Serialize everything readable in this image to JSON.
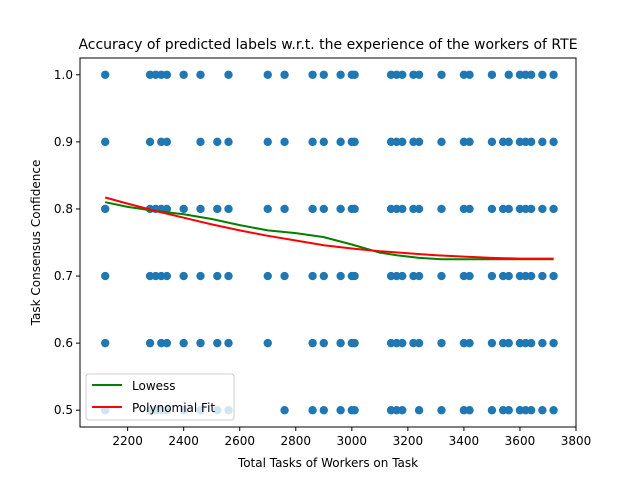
{
  "chart_data": {
    "type": "scatter",
    "title": "Accuracy of predicted labels w.r.t. the experience of the workers of RTE",
    "xlabel": "Total Tasks of Workers on Task",
    "ylabel": "Task Consensus Confidence",
    "xlim": [
      2030,
      3800
    ],
    "ylim": [
      0.475,
      1.025
    ],
    "xticks": [
      "2200",
      "2400",
      "2600",
      "2800",
      "3000",
      "3200",
      "3400",
      "3600",
      "3800"
    ],
    "yticks": [
      "0.5",
      "0.6",
      "0.7",
      "0.8",
      "0.9",
      "1.0"
    ],
    "legend_position": "lower-left",
    "colors": {
      "scatter": "#1f77b4",
      "lowess": "#008000",
      "poly": "#ff0000"
    },
    "scatter_x": [
      2120,
      2280,
      2300,
      2320,
      2340,
      2400,
      2460,
      2520,
      2560,
      2700,
      2760,
      2860,
      2900,
      2960,
      3000,
      3010,
      3140,
      3160,
      3180,
      3220,
      3240,
      3320,
      3400,
      3420,
      3500,
      3540,
      3560,
      3600,
      3620,
      3640,
      3680,
      3720
    ],
    "y_levels": [
      0.5,
      0.6,
      0.7,
      0.8,
      0.9,
      1.0
    ],
    "scatter": [
      {
        "y": 1.0,
        "x": [
          2120,
          2280,
          2300,
          2320,
          2340,
          2400,
          2460,
          2560,
          2700,
          2760,
          2860,
          2900,
          2960,
          3000,
          3010,
          3140,
          3160,
          3180,
          3220,
          3240,
          3320,
          3400,
          3420,
          3500,
          3560,
          3600,
          3620,
          3640,
          3680,
          3720
        ]
      },
      {
        "y": 0.9,
        "x": [
          2120,
          2280,
          2320,
          2340,
          2460,
          2520,
          2560,
          2700,
          2760,
          2860,
          2900,
          2960,
          3000,
          3010,
          3140,
          3160,
          3180,
          3220,
          3240,
          3320,
          3400,
          3420,
          3500,
          3540,
          3560,
          3600,
          3620,
          3640,
          3680,
          3720
        ]
      },
      {
        "y": 0.8,
        "x": [
          2120,
          2280,
          2300,
          2320,
          2340,
          2400,
          2460,
          2520,
          2560,
          2700,
          2760,
          2860,
          2900,
          2960,
          3000,
          3010,
          3140,
          3160,
          3180,
          3220,
          3240,
          3320,
          3400,
          3420,
          3500,
          3540,
          3560,
          3600,
          3620,
          3640,
          3680,
          3720
        ]
      },
      {
        "y": 0.7,
        "x": [
          2120,
          2280,
          2300,
          2320,
          2340,
          2400,
          2460,
          2520,
          2560,
          2700,
          2760,
          2860,
          2900,
          2960,
          3000,
          3010,
          3140,
          3160,
          3180,
          3220,
          3240,
          3320,
          3400,
          3420,
          3500,
          3540,
          3560,
          3600,
          3620,
          3640,
          3680,
          3720
        ]
      },
      {
        "y": 0.6,
        "x": [
          2120,
          2280,
          2320,
          2340,
          2400,
          2460,
          2520,
          2560,
          2700,
          2860,
          2900,
          2960,
          3000,
          3010,
          3140,
          3160,
          3180,
          3220,
          3240,
          3320,
          3400,
          3420,
          3500,
          3540,
          3560,
          3600,
          3620,
          3640,
          3680,
          3720
        ]
      },
      {
        "y": 0.5,
        "x": [
          2120,
          2280,
          2300,
          2320,
          2340,
          2400,
          2460,
          2520,
          2560,
          2760,
          2860,
          2900,
          2960,
          3000,
          3010,
          3140,
          3160,
          3180,
          3240,
          3320,
          3400,
          3420,
          3500,
          3540,
          3560,
          3600,
          3620,
          3640,
          3680,
          3720
        ]
      }
    ],
    "series": [
      {
        "name": "Lowess",
        "x": [
          2120,
          2200,
          2300,
          2400,
          2500,
          2600,
          2700,
          2800,
          2900,
          3000,
          3100,
          3160,
          3240,
          3320,
          3400,
          3500,
          3600,
          3720
        ],
        "y": [
          0.81,
          0.803,
          0.797,
          0.792,
          0.785,
          0.776,
          0.768,
          0.764,
          0.758,
          0.747,
          0.735,
          0.731,
          0.727,
          0.725,
          0.725,
          0.725,
          0.725,
          0.725
        ]
      },
      {
        "name": "Polynomial Fit",
        "x": [
          2120,
          2200,
          2300,
          2400,
          2500,
          2600,
          2700,
          2800,
          2900,
          3000,
          3100,
          3200,
          3300,
          3400,
          3500,
          3600,
          3720
        ],
        "y": [
          0.817,
          0.808,
          0.797,
          0.787,
          0.777,
          0.768,
          0.76,
          0.753,
          0.746,
          0.741,
          0.737,
          0.734,
          0.731,
          0.729,
          0.727,
          0.726,
          0.726
        ]
      }
    ]
  }
}
